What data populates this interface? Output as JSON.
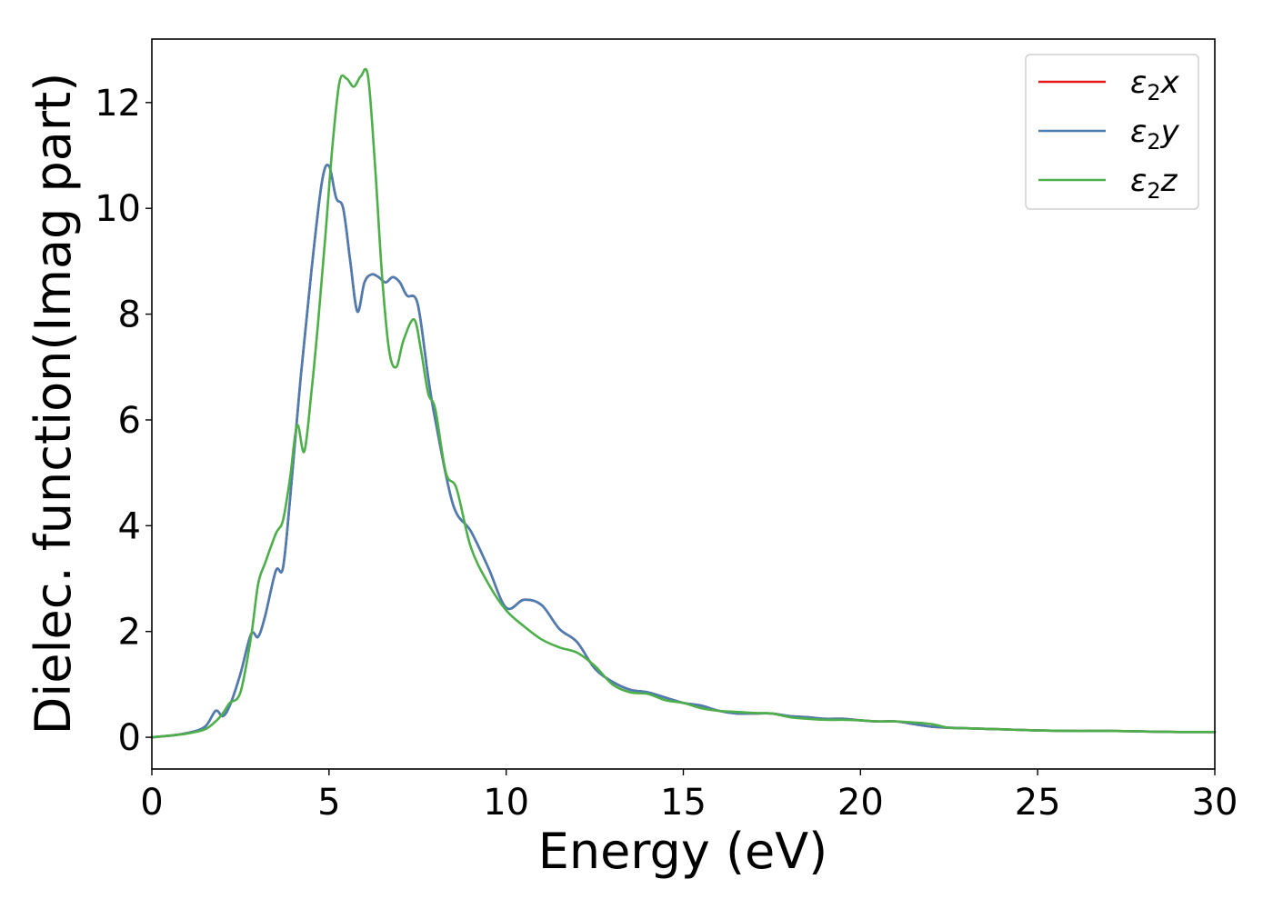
{
  "chart_data": {
    "type": "line",
    "xlabel": "Energy (eV)",
    "ylabel": "Dielec. function(Imag part)",
    "xlim": [
      0,
      30
    ],
    "ylim": [
      -0.6,
      13.2
    ],
    "xticks": [
      0,
      5,
      10,
      15,
      20,
      25,
      30
    ],
    "yticks": [
      0,
      2,
      4,
      6,
      8,
      10,
      12
    ],
    "grid": false,
    "legend": "top-right",
    "series": [
      {
        "name": "ε₂x",
        "legend_base": "ε",
        "legend_sub": "2",
        "legend_suffix": "x",
        "color": "#e41a1c",
        "x": [
          0,
          0.5,
          1,
          1.5,
          1.8,
          2,
          2.2,
          2.5,
          2.8,
          3,
          3.2,
          3.5,
          3.7,
          3.9,
          4.2,
          4.5,
          4.8,
          5,
          5.2,
          5.4,
          5.6,
          5.8,
          6,
          6.2,
          6.4,
          6.6,
          6.8,
          7,
          7.2,
          7.5,
          7.8,
          8,
          8.5,
          9,
          9.5,
          10,
          10.5,
          11,
          11.5,
          12,
          12.5,
          13,
          13.5,
          14,
          14.5,
          15,
          15.5,
          16,
          16.5,
          17,
          17.5,
          18,
          18.5,
          19,
          19.5,
          20,
          20.5,
          21,
          21.5,
          22,
          22.5,
          23,
          24,
          25,
          26,
          27,
          28,
          29,
          30
        ],
        "values": [
          0,
          0.03,
          0.08,
          0.2,
          0.5,
          0.4,
          0.6,
          1.2,
          1.95,
          1.9,
          2.3,
          3.15,
          3.2,
          4.5,
          6.8,
          8.8,
          10.5,
          10.8,
          10.2,
          10,
          9,
          8.05,
          8.6,
          8.75,
          8.7,
          8.6,
          8.7,
          8.6,
          8.35,
          8.2,
          6.8,
          6.0,
          4.4,
          3.9,
          3.2,
          2.45,
          2.6,
          2.5,
          2.05,
          1.8,
          1.3,
          1.05,
          0.9,
          0.85,
          0.75,
          0.65,
          0.6,
          0.5,
          0.45,
          0.45,
          0.45,
          0.4,
          0.38,
          0.35,
          0.35,
          0.32,
          0.3,
          0.3,
          0.25,
          0.2,
          0.18,
          0.17,
          0.15,
          0.13,
          0.12,
          0.12,
          0.11,
          0.1,
          0.1
        ]
      },
      {
        "name": "ε₂y",
        "legend_base": "ε",
        "legend_sub": "2",
        "legend_suffix": "y",
        "color": "#4a7eb3",
        "x": [
          0,
          0.5,
          1,
          1.5,
          1.8,
          2,
          2.2,
          2.5,
          2.8,
          3,
          3.2,
          3.5,
          3.7,
          3.9,
          4.2,
          4.5,
          4.8,
          5,
          5.2,
          5.4,
          5.6,
          5.8,
          6,
          6.2,
          6.4,
          6.6,
          6.8,
          7,
          7.2,
          7.5,
          7.8,
          8,
          8.5,
          9,
          9.5,
          10,
          10.5,
          11,
          11.5,
          12,
          12.5,
          13,
          13.5,
          14,
          14.5,
          15,
          15.5,
          16,
          16.5,
          17,
          17.5,
          18,
          18.5,
          19,
          19.5,
          20,
          20.5,
          21,
          21.5,
          22,
          22.5,
          23,
          24,
          25,
          26,
          27,
          28,
          29,
          30
        ],
        "values": [
          0,
          0.03,
          0.08,
          0.2,
          0.5,
          0.4,
          0.6,
          1.2,
          1.95,
          1.9,
          2.3,
          3.15,
          3.2,
          4.5,
          6.8,
          8.8,
          10.5,
          10.8,
          10.2,
          10,
          9,
          8.05,
          8.6,
          8.75,
          8.7,
          8.6,
          8.7,
          8.6,
          8.35,
          8.2,
          6.8,
          6.0,
          4.4,
          3.9,
          3.2,
          2.45,
          2.6,
          2.5,
          2.05,
          1.8,
          1.3,
          1.05,
          0.9,
          0.85,
          0.75,
          0.65,
          0.6,
          0.5,
          0.45,
          0.45,
          0.45,
          0.4,
          0.38,
          0.35,
          0.35,
          0.32,
          0.3,
          0.3,
          0.25,
          0.2,
          0.18,
          0.17,
          0.15,
          0.13,
          0.12,
          0.12,
          0.11,
          0.1,
          0.1
        ]
      },
      {
        "name": "ε₂z",
        "legend_base": "ε",
        "legend_sub": "2",
        "legend_suffix": "z",
        "color": "#4daf4a",
        "x": [
          0,
          0.5,
          1,
          1.5,
          1.8,
          2,
          2.2,
          2.5,
          2.8,
          3,
          3.2,
          3.5,
          3.7,
          3.9,
          4.1,
          4.3,
          4.5,
          4.7,
          4.9,
          5.1,
          5.3,
          5.5,
          5.7,
          5.9,
          6.1,
          6.3,
          6.5,
          6.7,
          6.9,
          7.1,
          7.4,
          7.6,
          7.8,
          8,
          8.3,
          8.6,
          9,
          9.5,
          10,
          10.5,
          11,
          11.5,
          12,
          12.5,
          13,
          13.5,
          14,
          14.5,
          15,
          15.5,
          16,
          16.5,
          17,
          17.5,
          18,
          18.5,
          19,
          19.5,
          20,
          20.5,
          21,
          21.5,
          22,
          22.5,
          23,
          24,
          25,
          26,
          27,
          28,
          29,
          30
        ],
        "values": [
          0,
          0.03,
          0.07,
          0.15,
          0.3,
          0.45,
          0.65,
          0.85,
          1.9,
          2.9,
          3.3,
          3.85,
          4.1,
          4.9,
          5.9,
          5.4,
          6.5,
          7.9,
          9.5,
          11.2,
          12.4,
          12.45,
          12.3,
          12.5,
          12.5,
          10.8,
          8.7,
          7.3,
          7.0,
          7.5,
          7.9,
          7.3,
          6.5,
          6.2,
          5.0,
          4.7,
          3.6,
          2.9,
          2.4,
          2.1,
          1.85,
          1.7,
          1.6,
          1.35,
          1.0,
          0.85,
          0.82,
          0.7,
          0.65,
          0.55,
          0.5,
          0.48,
          0.46,
          0.45,
          0.38,
          0.35,
          0.33,
          0.33,
          0.32,
          0.3,
          0.3,
          0.28,
          0.25,
          0.18,
          0.17,
          0.15,
          0.13,
          0.12,
          0.12,
          0.11,
          0.1,
          0.1
        ]
      }
    ]
  }
}
